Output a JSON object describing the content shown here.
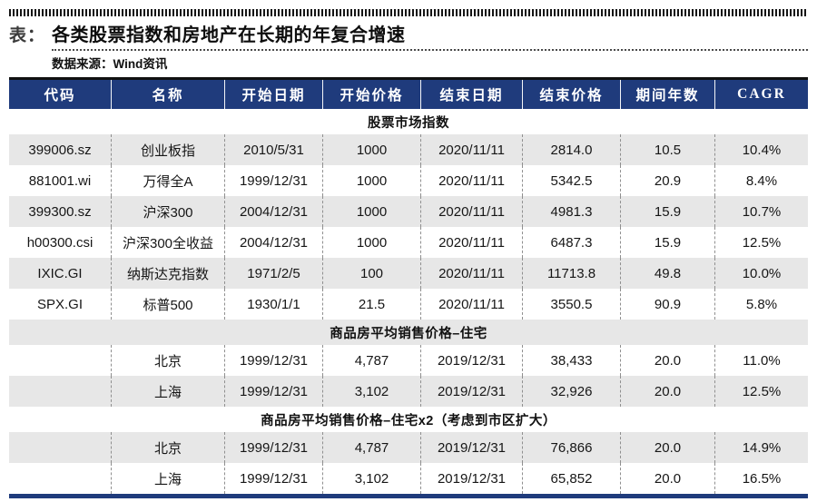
{
  "title": {
    "prefix": "表：",
    "text": "各类股票指数和房地产在长期的年复合增速"
  },
  "source": "数据来源：Wind资讯",
  "colors": {
    "header_bg": "#1F3B7C",
    "row_gray": "#E7E7E7",
    "bottom_rule": "#1F3B7C"
  },
  "table": {
    "headers": [
      "代码",
      "名称",
      "开始日期",
      "开始价格",
      "结束日期",
      "结束价格",
      "期间年数",
      "CAGR"
    ],
    "rows": [
      {
        "type": "section",
        "shade": "white",
        "label": "股票市场指数"
      },
      {
        "type": "data",
        "shade": "gray",
        "cells": [
          "399006.sz",
          "创业板指",
          "2010/5/31",
          "1000",
          "2020/11/11",
          "2814.0",
          "10.5",
          "10.4%"
        ]
      },
      {
        "type": "data",
        "shade": "white",
        "cells": [
          "881001.wi",
          "万得全A",
          "1999/12/31",
          "1000",
          "2020/11/11",
          "5342.5",
          "20.9",
          "8.4%"
        ]
      },
      {
        "type": "data",
        "shade": "gray",
        "cells": [
          "399300.sz",
          "沪深300",
          "2004/12/31",
          "1000",
          "2020/11/11",
          "4981.3",
          "15.9",
          "10.7%"
        ]
      },
      {
        "type": "data",
        "shade": "white",
        "cells": [
          "h00300.csi",
          "沪深300全收益",
          "2004/12/31",
          "1000",
          "2020/11/11",
          "6487.3",
          "15.9",
          "12.5%"
        ]
      },
      {
        "type": "data",
        "shade": "gray",
        "cells": [
          "IXIC.GI",
          "纳斯达克指数",
          "1971/2/5",
          "100",
          "2020/11/11",
          "11713.8",
          "49.8",
          "10.0%"
        ]
      },
      {
        "type": "data",
        "shade": "white",
        "cells": [
          "SPX.GI",
          "标普500",
          "1930/1/1",
          "21.5",
          "2020/11/11",
          "3550.5",
          "90.9",
          "5.8%"
        ]
      },
      {
        "type": "section",
        "shade": "gray",
        "label": "商品房平均销售价格–住宅"
      },
      {
        "type": "data",
        "shade": "white",
        "cells": [
          "",
          "北京",
          "1999/12/31",
          "4,787",
          "2019/12/31",
          "38,433",
          "20.0",
          "11.0%"
        ]
      },
      {
        "type": "data",
        "shade": "gray",
        "cells": [
          "",
          "上海",
          "1999/12/31",
          "3,102",
          "2019/12/31",
          "32,926",
          "20.0",
          "12.5%"
        ]
      },
      {
        "type": "section",
        "shade": "white",
        "label": "商品房平均销售价格–住宅x2（考虑到市区扩大）"
      },
      {
        "type": "data",
        "shade": "gray",
        "cells": [
          "",
          "北京",
          "1999/12/31",
          "4,787",
          "2019/12/31",
          "76,866",
          "20.0",
          "14.9%"
        ]
      },
      {
        "type": "data",
        "shade": "white",
        "cells": [
          "",
          "上海",
          "1999/12/31",
          "3,102",
          "2019/12/31",
          "65,852",
          "20.0",
          "16.5%"
        ]
      }
    ]
  }
}
